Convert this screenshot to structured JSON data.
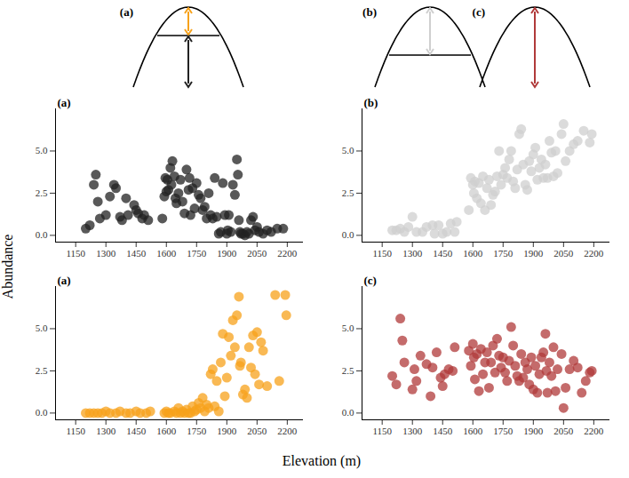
{
  "chart_data": [
    {
      "type": "scatter",
      "title": "(a)",
      "color": "#222222",
      "x": [
        1200,
        1220,
        1240,
        1250,
        1260,
        1270,
        1300,
        1320,
        1340,
        1350,
        1370,
        1380,
        1400,
        1410,
        1440,
        1450,
        1460,
        1480,
        1490,
        1510,
        1580,
        1590,
        1595,
        1600,
        1605,
        1610,
        1620,
        1625,
        1630,
        1640,
        1645,
        1650,
        1660,
        1670,
        1680,
        1690,
        1700,
        1710,
        1715,
        1720,
        1730,
        1740,
        1750,
        1760,
        1770,
        1780,
        1790,
        1800,
        1810,
        1820,
        1830,
        1840,
        1850,
        1860,
        1870,
        1880,
        1890,
        1900,
        1905,
        1910,
        1920,
        1930,
        1940,
        1950,
        1955,
        1960,
        1965,
        1970,
        1980,
        1990,
        2000,
        2010,
        2020,
        2030,
        2040,
        2050,
        2060,
        2080,
        2100,
        2120,
        2150,
        2180
      ],
      "values": [
        0.4,
        0.6,
        3.0,
        3.6,
        2.0,
        1.0,
        1.2,
        2.3,
        3.0,
        2.8,
        1.1,
        0.9,
        2.2,
        1.2,
        1.8,
        1.5,
        1.3,
        1.0,
        1.2,
        0.9,
        1.0,
        2.3,
        3.4,
        2.6,
        3.3,
        2.7,
        4.0,
        3.0,
        4.4,
        3.5,
        2.2,
        1.9,
        2.5,
        3.3,
        2.0,
        1.3,
        3.9,
        2.7,
        3.4,
        1.2,
        2.8,
        1.6,
        3.1,
        2.4,
        2.2,
        1.5,
        1.7,
        1.0,
        2.5,
        1.2,
        1.0,
        3.4,
        1.1,
        0.1,
        0.2,
        3.1,
        1.2,
        0.1,
        0.3,
        1.2,
        0.2,
        3.0,
        2.4,
        4.5,
        3.6,
        0.9,
        0.2,
        0.1,
        0.1,
        0.0,
        0.2,
        0.1,
        0.9,
        1.1,
        0.3,
        0.5,
        0.2,
        0.1,
        0.3,
        0.2,
        0.4,
        0.4
      ],
      "xlim": [
        1050,
        2280
      ],
      "ylim": [
        -0.4,
        7.5
      ],
      "xticks": [
        1150,
        1300,
        1450,
        1600,
        1750,
        1900,
        2050,
        2200
      ],
      "yticks": [
        {
          "value": 0,
          "label": "0.0"
        },
        {
          "value": 2.5,
          "label": "2.5"
        },
        {
          "value": 5,
          "label": "5.0"
        }
      ]
    },
    {
      "type": "scatter",
      "title": "(b)",
      "color": "#cfcfcf",
      "x": [
        1200,
        1220,
        1240,
        1260,
        1280,
        1300,
        1320,
        1350,
        1370,
        1400,
        1410,
        1430,
        1450,
        1470,
        1490,
        1510,
        1520,
        1580,
        1590,
        1600,
        1605,
        1610,
        1620,
        1630,
        1640,
        1650,
        1660,
        1670,
        1680,
        1690,
        1700,
        1710,
        1720,
        1730,
        1740,
        1750,
        1760,
        1770,
        1780,
        1790,
        1800,
        1810,
        1820,
        1830,
        1840,
        1850,
        1860,
        1870,
        1880,
        1890,
        1900,
        1910,
        1920,
        1930,
        1940,
        1950,
        1960,
        1970,
        1980,
        1990,
        2000,
        2010,
        2020,
        2040,
        2050,
        2060,
        2080,
        2100,
        2120,
        2150,
        2180,
        2190
      ],
      "values": [
        0.3,
        0.3,
        0.4,
        0.2,
        0.5,
        1.1,
        0.2,
        0.2,
        0.5,
        0.6,
        0.1,
        0.6,
        0.1,
        0.2,
        0.7,
        0.2,
        0.8,
        1.5,
        3.4,
        3.0,
        2.5,
        3.2,
        2.2,
        3.1,
        1.9,
        3.5,
        1.5,
        2.8,
        3.3,
        1.8,
        2.4,
        2.6,
        3.5,
        5.0,
        3.0,
        3.6,
        4.0,
        3.4,
        4.5,
        5.0,
        3.2,
        2.8,
        3.9,
        6.0,
        6.3,
        4.2,
        3.0,
        2.7,
        4.4,
        3.8,
        4.8,
        5.2,
        3.3,
        4.0,
        4.5,
        3.4,
        4.2,
        3.4,
        5.6,
        4.9,
        3.5,
        5.0,
        3.7,
        6.0,
        6.6,
        4.4,
        5.0,
        5.4,
        5.6,
        6.2,
        5.5,
        6.0
      ],
      "xlim": [
        1050,
        2280
      ],
      "ylim": [
        -0.4,
        7.5
      ],
      "xticks": [
        1150,
        1300,
        1450,
        1600,
        1750,
        1900,
        2050,
        2200
      ],
      "yticks": [
        {
          "value": 0,
          "label": "0.0"
        },
        {
          "value": 2.5,
          "label": "2.5"
        },
        {
          "value": 5,
          "label": "5.0"
        }
      ]
    },
    {
      "type": "scatter",
      "title": "(a)",
      "color": "#f7a21b",
      "x": [
        1200,
        1220,
        1240,
        1260,
        1280,
        1300,
        1320,
        1350,
        1370,
        1400,
        1420,
        1450,
        1470,
        1500,
        1520,
        1590,
        1600,
        1610,
        1620,
        1640,
        1650,
        1660,
        1670,
        1680,
        1690,
        1700,
        1710,
        1720,
        1730,
        1740,
        1750,
        1760,
        1770,
        1780,
        1790,
        1800,
        1810,
        1820,
        1830,
        1840,
        1850,
        1860,
        1870,
        1880,
        1890,
        1900,
        1910,
        1920,
        1930,
        1940,
        1950,
        1960,
        1965,
        1970,
        1980,
        1990,
        2000,
        2010,
        2020,
        2030,
        2040,
        2050,
        2060,
        2070,
        2080,
        2100,
        2140,
        2160,
        2190,
        2195
      ],
      "values": [
        0,
        0,
        0,
        0,
        0,
        0.1,
        0,
        0,
        0.1,
        0,
        0,
        0.1,
        0,
        0,
        0.1,
        0,
        0.1,
        0,
        0,
        0.1,
        0,
        0.3,
        0,
        0.1,
        0,
        0.2,
        0,
        0,
        0.4,
        0.1,
        0.2,
        0.6,
        0.3,
        0.9,
        0.1,
        0.5,
        0.3,
        2.3,
        2.6,
        0.4,
        1.9,
        0.1,
        3.0,
        4.7,
        1.0,
        2.1,
        4.5,
        3.4,
        5.5,
        3.9,
        5.8,
        6.9,
        2.8,
        3.0,
        1.1,
        1.4,
        0.9,
        3.9,
        2.7,
        4.6,
        2.3,
        4.8,
        1.7,
        4.2,
        3.7,
        1.6,
        7.0,
        1.9,
        7.0,
        5.8
      ],
      "xlim": [
        1050,
        2280
      ],
      "ylim": [
        -0.4,
        7.5
      ],
      "xticks": [
        1150,
        1300,
        1450,
        1600,
        1750,
        1900,
        2050,
        2200
      ],
      "yticks": [
        {
          "value": 0,
          "label": "0.0"
        },
        {
          "value": 2.5,
          "label": "2.5"
        },
        {
          "value": 5,
          "label": "5.0"
        }
      ]
    },
    {
      "type": "scatter",
      "title": "(c)",
      "color": "#b03a3a",
      "x": [
        1200,
        1220,
        1240,
        1250,
        1260,
        1300,
        1310,
        1320,
        1340,
        1370,
        1390,
        1400,
        1420,
        1440,
        1450,
        1460,
        1480,
        1500,
        1510,
        1580,
        1590,
        1600,
        1605,
        1610,
        1620,
        1630,
        1640,
        1650,
        1660,
        1670,
        1680,
        1690,
        1700,
        1710,
        1720,
        1730,
        1740,
        1750,
        1760,
        1770,
        1780,
        1790,
        1800,
        1810,
        1820,
        1830,
        1840,
        1850,
        1860,
        1870,
        1880,
        1890,
        1900,
        1910,
        1920,
        1930,
        1940,
        1950,
        1960,
        1965,
        1970,
        1980,
        1990,
        2000,
        2010,
        2020,
        2040,
        2050,
        2060,
        2080,
        2100,
        2120,
        2140,
        2160,
        2180,
        2190
      ],
      "values": [
        2.2,
        1.7,
        5.6,
        4.3,
        3.0,
        1.4,
        2.6,
        1.9,
        3.4,
        2.9,
        1.0,
        2.7,
        3.6,
        2.1,
        1.6,
        2.3,
        2.6,
        2.5,
        3.9,
        3.7,
        2.8,
        4.1,
        3.3,
        2.0,
        3.5,
        1.3,
        3.8,
        2.3,
        3.0,
        3.6,
        1.5,
        3.0,
        4.0,
        2.4,
        4.4,
        3.4,
        2.7,
        3.3,
        2.4,
        1.9,
        3.1,
        5.1,
        4.0,
        2.8,
        2.2,
        1.9,
        3.5,
        2.1,
        3.0,
        2.6,
        1.7,
        3.3,
        1.4,
        2.8,
        1.2,
        2.3,
        3.3,
        3.6,
        4.7,
        2.5,
        1.2,
        3.0,
        2.2,
        3.9,
        1.3,
        2.6,
        3.5,
        0.3,
        1.5,
        2.6,
        3.1,
        2.7,
        1.2,
        1.9,
        2.4,
        2.5
      ],
      "xlim": [
        1050,
        2280
      ],
      "ylim": [
        -0.4,
        7.5
      ],
      "xticks": [
        1150,
        1300,
        1450,
        1600,
        1750,
        1900,
        2050,
        2200
      ],
      "yticks": [
        {
          "value": 0,
          "label": "0.0"
        },
        {
          "value": 2.5,
          "label": "2.5"
        },
        {
          "value": 5,
          "label": "5.0"
        }
      ]
    }
  ],
  "xlabel": "Elevation (m)",
  "ylabel": "Abundance",
  "schematic": {
    "labels": [
      "(a)",
      "(b)",
      "(c)"
    ]
  }
}
